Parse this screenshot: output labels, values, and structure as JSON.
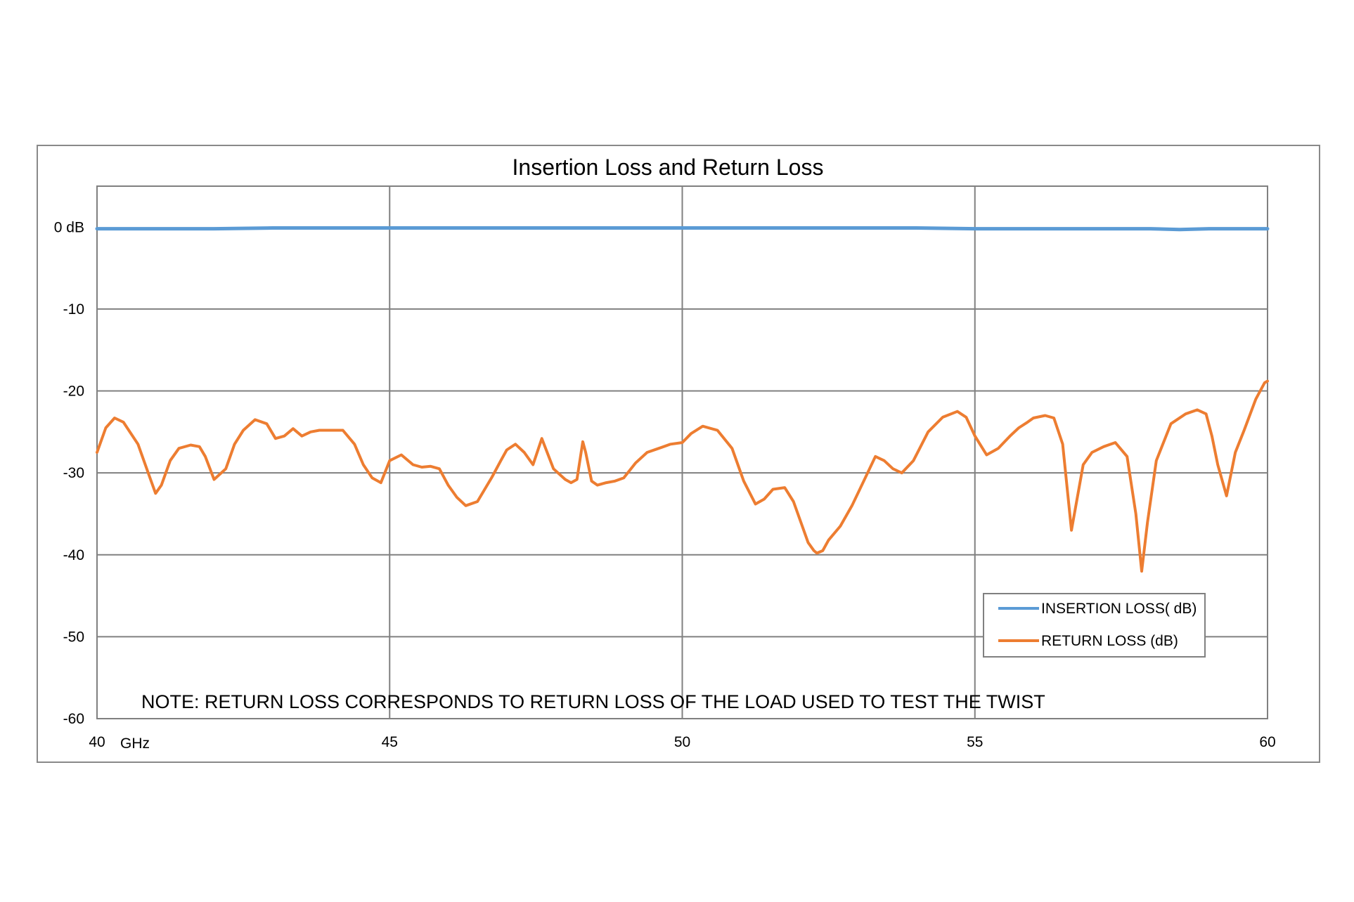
{
  "chart_data": {
    "type": "line",
    "title": "Insertion Loss and Return Loss",
    "note": "NOTE:  RETURN LOSS CORRESPONDS TO RETURN LOSS OF THE LOAD USED TO TEST THE TWIST",
    "xlim": [
      40,
      60
    ],
    "ylim": [
      -60,
      5
    ],
    "x_ticks": [
      40,
      45,
      50,
      55,
      60
    ],
    "x_tick_labels": [
      "40",
      "45",
      "50",
      "55",
      "60"
    ],
    "x_unit_label": "GHz",
    "y_ticks": [
      0,
      -10,
      -20,
      -30,
      -40,
      -50,
      -60
    ],
    "y_tick_labels": [
      "0 dB",
      "-10",
      "-20",
      "-30",
      "-40",
      "-50",
      "-60"
    ],
    "grid": true,
    "legend_position": "lower-right",
    "series": [
      {
        "name": "INSERTION LOSS( dB)",
        "color": "#5b9bd5",
        "x": [
          40,
          41,
          42,
          43,
          44,
          45,
          46,
          47,
          48,
          49,
          50,
          51,
          52,
          53,
          54,
          55,
          56,
          57,
          58,
          58.5,
          59,
          60
        ],
        "y": [
          -0.2,
          -0.2,
          -0.2,
          -0.1,
          -0.1,
          -0.1,
          -0.1,
          -0.1,
          -0.1,
          -0.1,
          -0.1,
          -0.1,
          -0.1,
          -0.1,
          -0.1,
          -0.2,
          -0.2,
          -0.2,
          -0.2,
          -0.3,
          -0.2,
          -0.2
        ]
      },
      {
        "name": "RETURN LOSS (dB)",
        "color": "#ed7d31",
        "x": [
          40,
          40.15,
          40.3,
          40.45,
          40.7,
          40.9,
          41.0,
          41.1,
          41.25,
          41.4,
          41.6,
          41.75,
          41.85,
          42.0,
          42.2,
          42.35,
          42.5,
          42.7,
          42.9,
          43.05,
          43.2,
          43.35,
          43.5,
          43.65,
          43.8,
          43.95,
          44.2,
          44.4,
          44.55,
          44.7,
          44.85,
          45.0,
          45.2,
          45.4,
          45.55,
          45.7,
          45.85,
          46.0,
          46.15,
          46.3,
          46.5,
          46.75,
          46.9,
          47.0,
          47.15,
          47.3,
          47.45,
          47.6,
          47.8,
          48.0,
          48.1,
          48.2,
          48.3,
          48.35,
          48.45,
          48.55,
          48.7,
          48.85,
          49.0,
          49.2,
          49.4,
          49.6,
          49.8,
          50.0,
          50.15,
          50.35,
          50.6,
          50.85,
          51.05,
          51.25,
          51.4,
          51.55,
          51.75,
          51.9,
          52.05,
          52.15,
          52.25,
          52.3,
          52.4,
          52.5,
          52.7,
          52.9,
          53.1,
          53.3,
          53.45,
          53.6,
          53.75,
          53.95,
          54.2,
          54.45,
          54.7,
          54.85,
          55.0,
          55.2,
          55.4,
          55.6,
          55.75,
          55.9,
          56.0,
          56.2,
          56.35,
          56.5,
          56.65,
          56.85,
          57.0,
          57.2,
          57.4,
          57.6,
          57.75,
          57.85,
          57.95,
          58.1,
          58.35,
          58.6,
          58.8,
          58.95,
          59.05,
          59.15,
          59.3,
          59.45,
          59.6,
          59.8,
          59.95,
          60.0
        ],
        "y": [
          -27.5,
          -24.5,
          -23.3,
          -23.8,
          -26.5,
          -30.5,
          -32.5,
          -31.5,
          -28.5,
          -27,
          -26.6,
          -26.8,
          -28,
          -30.8,
          -29.5,
          -26.5,
          -24.8,
          -23.5,
          -24,
          -25.8,
          -25.5,
          -24.6,
          -25.5,
          -25.0,
          -24.8,
          -24.8,
          -24.8,
          -26.5,
          -29.0,
          -30.6,
          -31.2,
          -28.5,
          -27.8,
          -29.0,
          -29.3,
          -29.2,
          -29.5,
          -31.5,
          -33.0,
          -34.0,
          -33.5,
          -30.5,
          -28.5,
          -27.2,
          -26.5,
          -27.5,
          -29.0,
          -25.8,
          -29.5,
          -30.8,
          -31.2,
          -30.8,
          -26.2,
          -27.5,
          -31.0,
          -31.5,
          -31.2,
          -31.0,
          -30.6,
          -28.8,
          -27.5,
          -27.0,
          -26.5,
          -26.3,
          -25.2,
          -24.3,
          -24.8,
          -27.0,
          -31.0,
          -33.8,
          -33.2,
          -32.0,
          -31.8,
          -33.5,
          -36.5,
          -38.5,
          -39.5,
          -39.8,
          -39.5,
          -38.2,
          -36.5,
          -34.0,
          -31.0,
          -28.0,
          -28.5,
          -29.5,
          -30.0,
          -28.5,
          -25.0,
          -23.2,
          -22.5,
          -23.2,
          -25.5,
          -27.8,
          -27.0,
          -25.5,
          -24.5,
          -23.8,
          -23.3,
          -23.0,
          -23.3,
          -26.5,
          -37.0,
          -29.0,
          -27.5,
          -26.8,
          -26.3,
          -28.0,
          -35.0,
          -42.0,
          -36.0,
          -28.5,
          -24.0,
          -22.8,
          -22.3,
          -22.8,
          -25.5,
          -29.0,
          -32.8,
          -27.5,
          -24.8,
          -21.0,
          -19.0,
          -18.8
        ]
      }
    ]
  }
}
